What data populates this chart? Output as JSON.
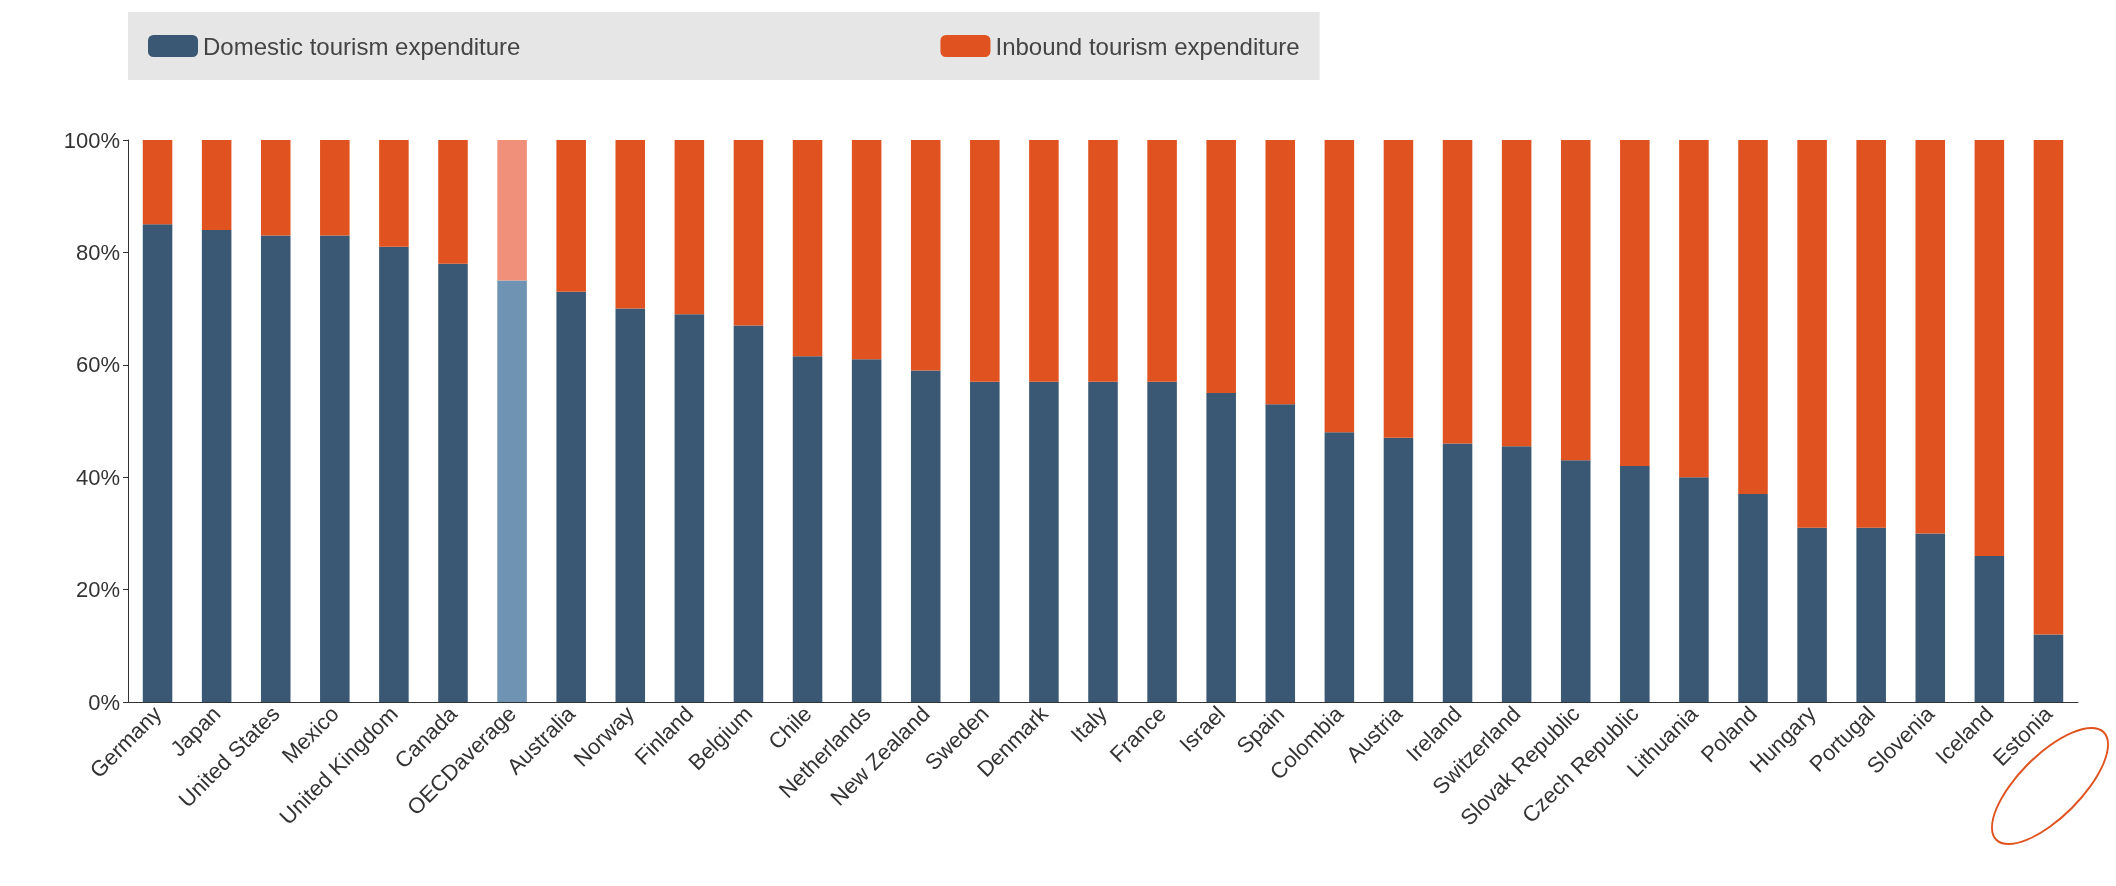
{
  "chart_data": {
    "type": "bar",
    "stacked": true,
    "legend": "top",
    "grid": false,
    "categories": [
      "Germany",
      "Japan",
      "United States",
      "Mexico",
      "United Kingdom",
      "Canada",
      "OECDaverage",
      "Australia",
      "Norway",
      "Finland",
      "Belgium",
      "Chile",
      "Netherlands",
      "New Zealand",
      "Sweden",
      "Denmark",
      "Italy",
      "France",
      "Israel",
      "Spain",
      "Colombia",
      "Austria",
      "Ireland",
      "Switzerland",
      "Slovak Republic",
      "Czech Republic",
      "Lithuania",
      "Poland",
      "Hungary",
      "Portugal",
      "Slovenia",
      "Iceland",
      "Estonia"
    ],
    "series": [
      {
        "name": "Domestic tourism expenditure",
        "color": "#3a5874",
        "colors": [
          "#3a5874",
          "#3a5874",
          "#3a5874",
          "#3a5874",
          "#3a5874",
          "#3a5874",
          "#6f93b3",
          "#3a5874",
          "#3a5874",
          "#3a5874",
          "#3a5874",
          "#3a5874",
          "#3a5874",
          "#3a5874",
          "#3a5874",
          "#3a5874",
          "#3a5874",
          "#3a5874",
          "#3a5874",
          "#3a5874",
          "#3a5874",
          "#3a5874",
          "#3a5874",
          "#3a5874",
          "#3a5874",
          "#3a5874",
          "#3a5874",
          "#3a5874",
          "#3a5874",
          "#3a5874",
          "#3a5874",
          "#3a5874",
          "#3a5874"
        ],
        "values": [
          85,
          84,
          83,
          83,
          81,
          78,
          75,
          73,
          70,
          69,
          67,
          61.5,
          61,
          59,
          57,
          57,
          57,
          57,
          55,
          53,
          48,
          47,
          46,
          45.5,
          43,
          42,
          40,
          37,
          31,
          31,
          30,
          26,
          12
        ]
      },
      {
        "name": "Inbound tourism expenditure",
        "color": "#e0521f",
        "colors": [
          "#e0521f",
          "#e0521f",
          "#e0521f",
          "#e0521f",
          "#e0521f",
          "#e0521f",
          "#f0907a",
          "#e0521f",
          "#e0521f",
          "#e0521f",
          "#e0521f",
          "#e0521f",
          "#e0521f",
          "#e0521f",
          "#e0521f",
          "#e0521f",
          "#e0521f",
          "#e0521f",
          "#e0521f",
          "#e0521f",
          "#e0521f",
          "#e0521f",
          "#e0521f",
          "#e0521f",
          "#e0521f",
          "#e0521f",
          "#e0521f",
          "#e0521f",
          "#e0521f",
          "#e0521f",
          "#e0521f",
          "#e0521f",
          "#e0521f"
        ],
        "values": [
          15,
          16,
          17,
          17,
          19,
          22,
          25,
          27,
          30,
          31,
          33,
          38.5,
          39,
          41,
          43,
          43,
          43,
          43,
          45,
          47,
          52,
          53,
          54,
          54.5,
          57,
          58,
          60,
          63,
          69,
          69,
          70,
          74,
          88
        ]
      }
    ],
    "ylim": [
      0,
      100
    ],
    "yticks": [
      {
        "value": 0,
        "label": "0%"
      },
      {
        "value": 20,
        "label": "20%"
      },
      {
        "value": 40,
        "label": "40%"
      },
      {
        "value": 60,
        "label": "60%"
      },
      {
        "value": 80,
        "label": "80%"
      },
      {
        "value": 100,
        "label": "100%"
      }
    ]
  }
}
